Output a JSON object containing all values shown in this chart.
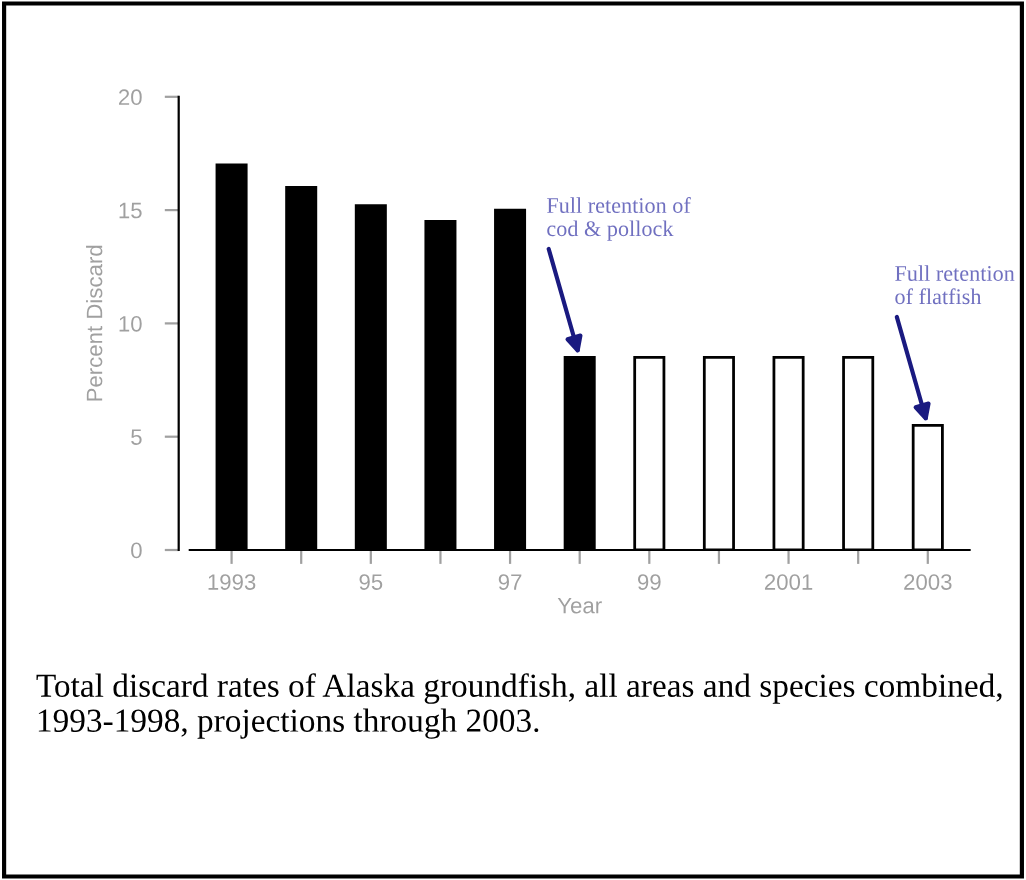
{
  "chart_data": {
    "type": "bar",
    "xlabel": "Year",
    "ylabel": "Percent Discard",
    "x": [
      1993,
      1994,
      1995,
      1996,
      1997,
      1998,
      1999,
      2000,
      2001,
      2002,
      2003
    ],
    "values": [
      17.0,
      16.0,
      15.2,
      14.5,
      15.0,
      8.5,
      8.5,
      8.5,
      8.5,
      8.5,
      5.5
    ],
    "colors": [
      "#000000",
      "#000000",
      "#000000",
      "#000000",
      "#000000",
      "#000000",
      "#ffffff",
      "#ffffff",
      "#ffffff",
      "#ffffff",
      "#ffffff"
    ],
    "xlim": [
      1992.4,
      2003.6
    ],
    "ylim": [
      0,
      20
    ],
    "xticks": [
      {
        "value": 1993,
        "label": "1993"
      },
      {
        "value": 1994,
        "label": null
      },
      {
        "value": 1995,
        "label": "95"
      },
      {
        "value": 1996,
        "label": null
      },
      {
        "value": 1997,
        "label": "97"
      },
      {
        "value": 1998,
        "label": null
      },
      {
        "value": 1999,
        "label": "99"
      },
      {
        "value": 2000,
        "label": null
      },
      {
        "value": 2001,
        "label": "2001"
      },
      {
        "value": 2002,
        "label": null
      },
      {
        "value": 2003,
        "label": "2003"
      }
    ],
    "yticks": [
      0,
      5,
      10,
      15,
      20
    ],
    "grid": false,
    "legend": false,
    "annotations": [
      {
        "text": "Full retention of\ncod & pollock",
        "x": 1998,
        "y": 8.5
      },
      {
        "text": "Full retention\nof flatfish",
        "x": 2003,
        "y": 5.5
      },
      "Total discard rates of Alaska groundfish, all areas and species combined, 1993-1998, projections through 2003."
    ]
  }
}
